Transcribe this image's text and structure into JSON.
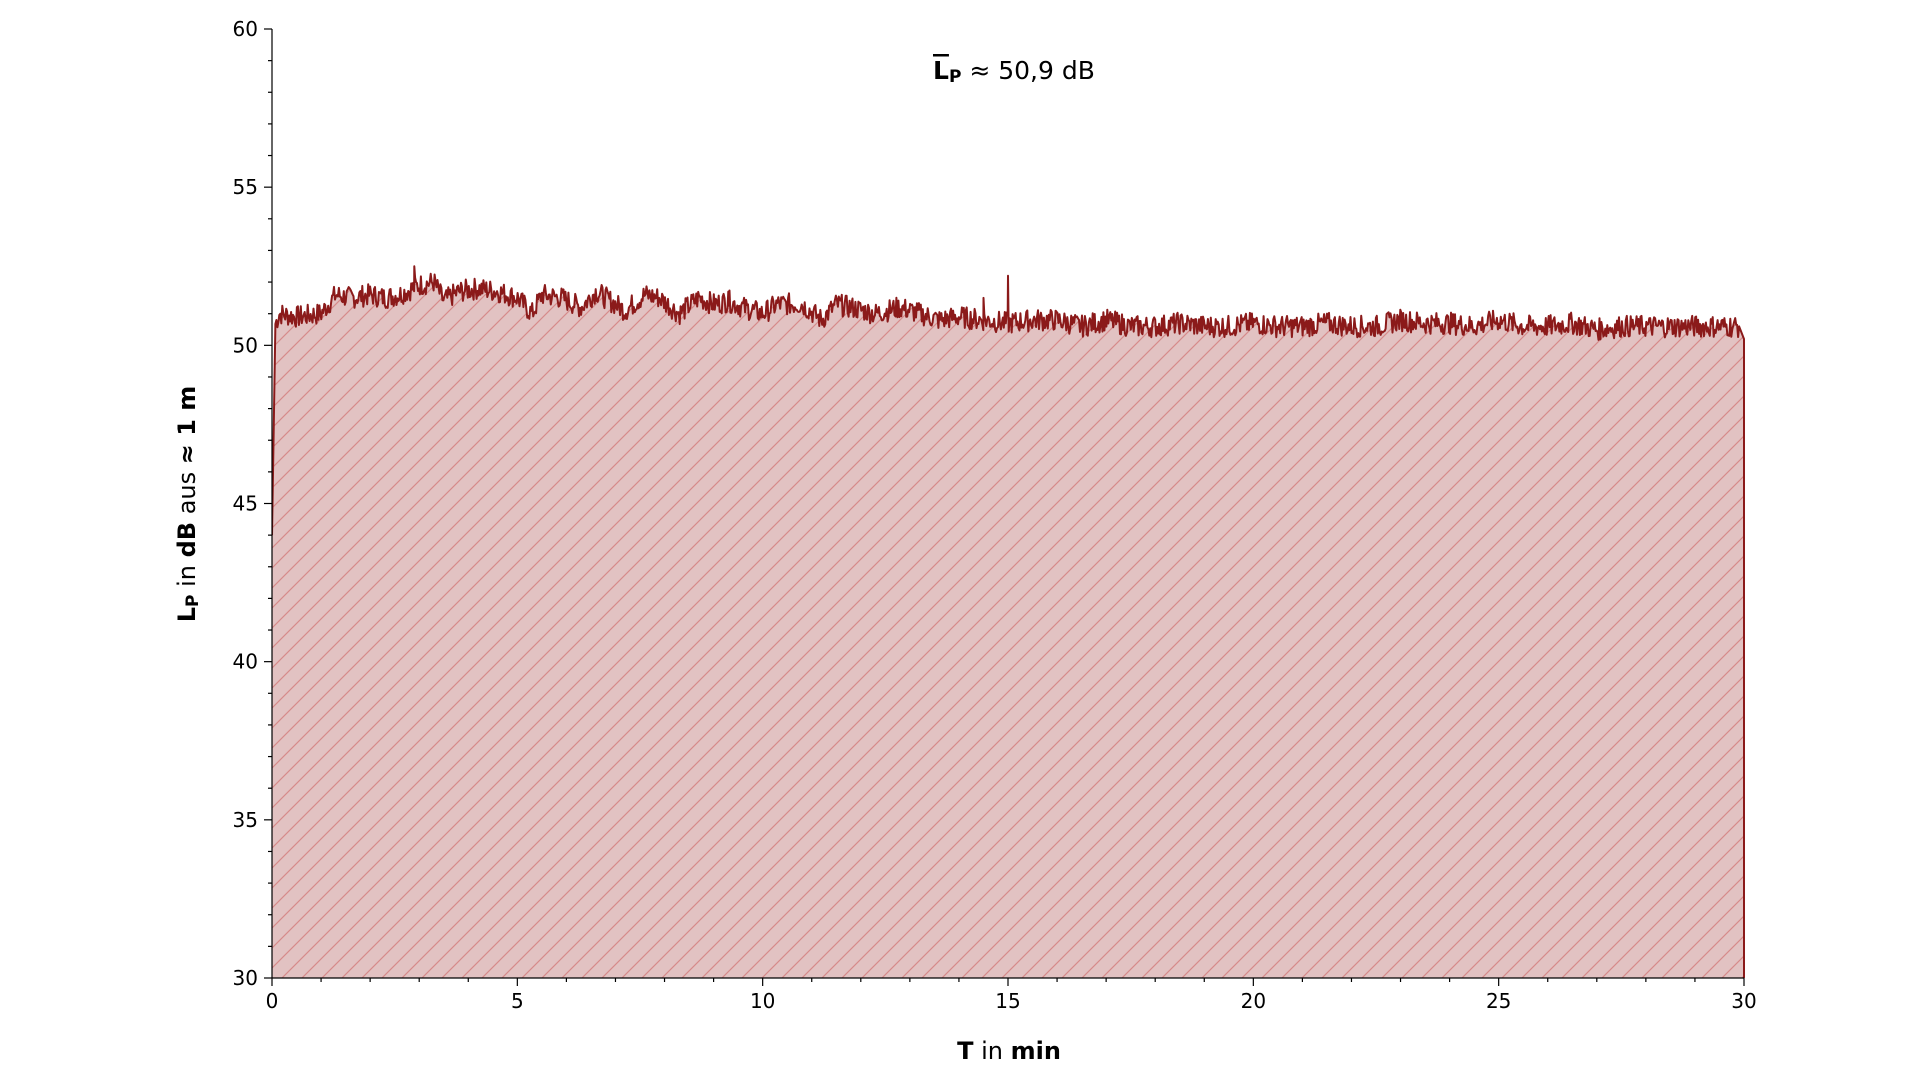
{
  "chart_data": {
    "type": "area",
    "title": "",
    "xlabel": {
      "var": "T",
      "mid": " in ",
      "unit": "min"
    },
    "ylabel": {
      "var": "L",
      "sub": "P",
      "mid1": " in ",
      "unit": "dB",
      "mid2": " aus ",
      "dist": "≈ 1 m"
    },
    "annotation": {
      "symbol": "L",
      "sub": "P",
      "text": " ≈ 50,9 dB"
    },
    "xlim": [
      0,
      30
    ],
    "ylim": [
      30,
      60
    ],
    "xticks": [
      0,
      5,
      10,
      15,
      20,
      25,
      30
    ],
    "xtick_labels": [
      "0",
      "5",
      "10",
      "15",
      "20",
      "25",
      "30"
    ],
    "yticks": [
      30,
      35,
      40,
      45,
      50,
      55,
      60
    ],
    "ytick_labels": [
      "30",
      "35",
      "40",
      "45",
      "50",
      "55",
      "60"
    ],
    "series": [
      {
        "x": [
          0,
          0.05,
          0.15,
          0.5,
          1.0,
          1.3,
          1.6,
          2.0,
          2.3,
          2.6,
          3.0,
          3.3,
          3.5,
          3.8,
          4.2,
          4.6,
          5.0,
          5.3,
          5.5,
          5.9,
          6.3,
          6.6,
          6.8,
          7.2,
          7.6,
          7.9,
          8.3,
          8.7,
          9.0,
          9.3,
          9.6,
          10.0,
          10.3,
          10.8,
          11.2,
          11.5,
          11.8,
          12.3,
          12.8,
          13.2,
          13.6,
          14.0,
          14.5,
          15.0,
          15.5,
          16.0,
          16.5,
          17.0,
          17.5,
          18.0,
          18.5,
          19.0,
          19.5,
          20.0,
          20.5,
          21.0,
          21.5,
          22.0,
          22.5,
          23.0,
          23.5,
          24.0,
          24.5,
          25.0,
          25.5,
          26.0,
          26.5,
          27.0,
          27.5,
          28.0,
          28.5,
          29.0,
          29.5,
          29.9,
          30.0
        ],
        "y": [
          44,
          50.6,
          51.0,
          50.9,
          51.0,
          51.6,
          51.5,
          51.6,
          51.5,
          51.6,
          51.9,
          52.0,
          51.4,
          51.7,
          51.8,
          51.7,
          51.5,
          51.0,
          51.6,
          51.5,
          51.2,
          51.7,
          51.5,
          51.1,
          51.6,
          51.5,
          51.0,
          51.5,
          51.3,
          51.4,
          51.2,
          51.0,
          51.3,
          51.3,
          50.8,
          51.3,
          51.2,
          51.0,
          51.2,
          51.0,
          50.8,
          50.9,
          50.8,
          50.7,
          50.8,
          50.8,
          50.6,
          50.8,
          50.6,
          50.6,
          50.7,
          50.6,
          50.6,
          50.7,
          50.6,
          50.6,
          50.7,
          50.6,
          50.6,
          50.8,
          50.7,
          50.7,
          50.6,
          50.8,
          50.6,
          50.6,
          50.7,
          50.5,
          50.6,
          50.6,
          50.6,
          50.6,
          50.6,
          50.6,
          50.2
        ],
        "spikes": [
          [
            2.9,
            52.5
          ],
          [
            15.0,
            52.2
          ],
          [
            9.3,
            51.7
          ],
          [
            14.5,
            51.5
          ]
        ],
        "color": "#8b1a1a",
        "fill": "#e2c2c2",
        "hatch": "#d68a8a"
      }
    ]
  }
}
